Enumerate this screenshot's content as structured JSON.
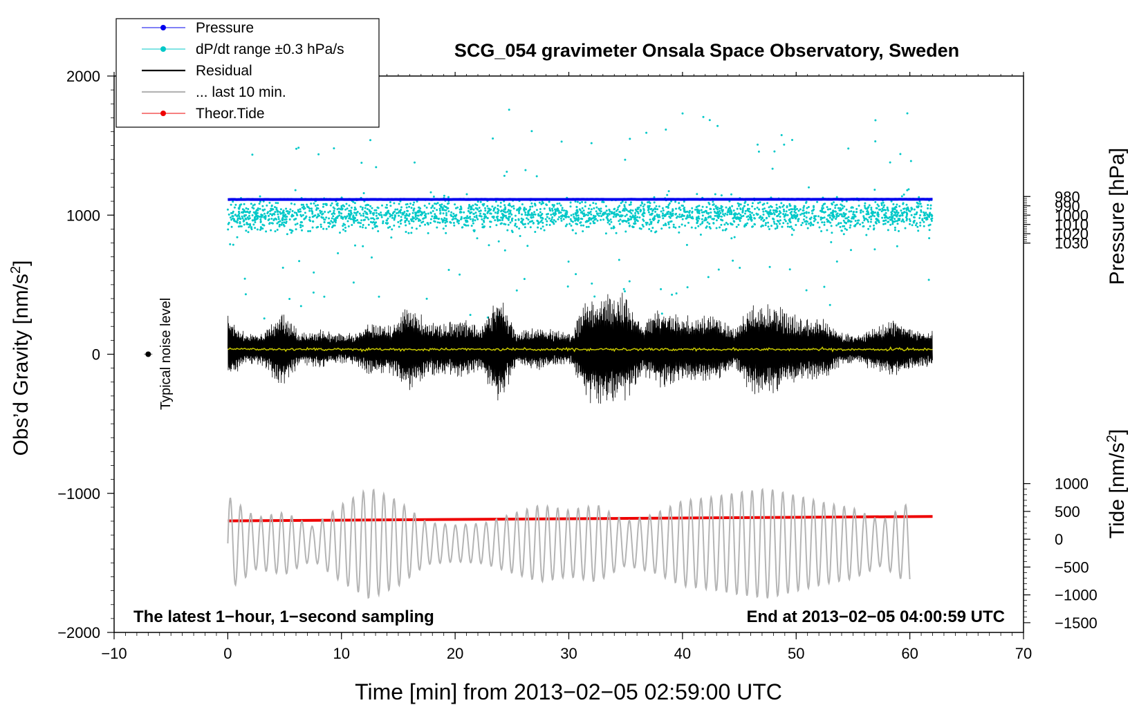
{
  "chart_data": {
    "type": "line",
    "title": "SCG_054 gravimeter Onsala Space Observatory, Sweden",
    "xlabel": "Time [min] from 2013−02−05 02:59:00 UTC",
    "ylabel_main": "Obs’d Gravity [nm/s",
    "ylabel_pressure": "Pressure [hPa]",
    "ylabel_tide": "Tide [nm/s",
    "superscript": "2",
    "ylabel_suffix": "]",
    "xlim": [
      -10,
      70
    ],
    "ylim": [
      -2000,
      2000
    ],
    "pressure_lim": [
      980,
      1030
    ],
    "tide_lim": [
      -1500,
      1000
    ],
    "x_ticks": [
      "−10",
      "0",
      "10",
      "20",
      "30",
      "40",
      "50",
      "60",
      "70"
    ],
    "y_ticks": [
      "2000",
      "1000",
      "0",
      "−1000",
      "−2000"
    ],
    "pressure_ticks": [
      "1030",
      "1020",
      "1010",
      "1000",
      "990",
      "980"
    ],
    "tide_ticks": [
      "1000",
      "500",
      "0",
      "−500",
      "−1000",
      "−1500"
    ],
    "legend": [
      {
        "label": "Pressure",
        "color": "#0000ee",
        "marker": "dot"
      },
      {
        "label": "dP/dt range ±0.3 hPa/s",
        "color": "#00c8c8",
        "marker": "dot"
      },
      {
        "label": "Residual",
        "color": "#000000",
        "marker": "line"
      },
      {
        "label": "... last 10 min.",
        "color": "#b4b4b4",
        "marker": "line"
      },
      {
        "label": "Theor.Tide",
        "color": "#ee0000",
        "marker": "dot"
      }
    ],
    "annotations": {
      "noise": "Typical noise level",
      "bottom_left": "The latest 1−hour, 1−second sampling",
      "bottom_right": "End at 2013−02−05 04:00:59 UTC"
    },
    "series": [
      {
        "name": "Pressure",
        "axis": "pressure",
        "x_range": [
          0,
          62
        ],
        "values_hPa": [
          983.2,
          983.0
        ],
        "color": "#0000ee"
      },
      {
        "name": "dP/dt range",
        "axis": "main",
        "x_range": [
          0,
          62
        ],
        "center": 1000,
        "spread": 400,
        "color": "#00c8c8"
      },
      {
        "name": "Residual",
        "axis": "main",
        "x_range": [
          0,
          62
        ],
        "center": 0,
        "envelope": 450,
        "color": "#000000"
      },
      {
        "name": "mean",
        "axis": "main",
        "x_range": [
          0,
          62
        ],
        "values": [
          35,
          35
        ],
        "color": "#c8c800"
      },
      {
        "name": "Theor.Tide",
        "axis": "tide",
        "x_range": [
          0,
          62
        ],
        "values": [
          330,
          410
        ],
        "color": "#ee0000"
      },
      {
        "name": "... last 10 min.",
        "axis": "main",
        "x_range": [
          0,
          60
        ],
        "center": -1300,
        "amplitude": 400,
        "color": "#b4b4b4"
      }
    ],
    "noise_point": {
      "x": -7,
      "y": 0
    }
  }
}
